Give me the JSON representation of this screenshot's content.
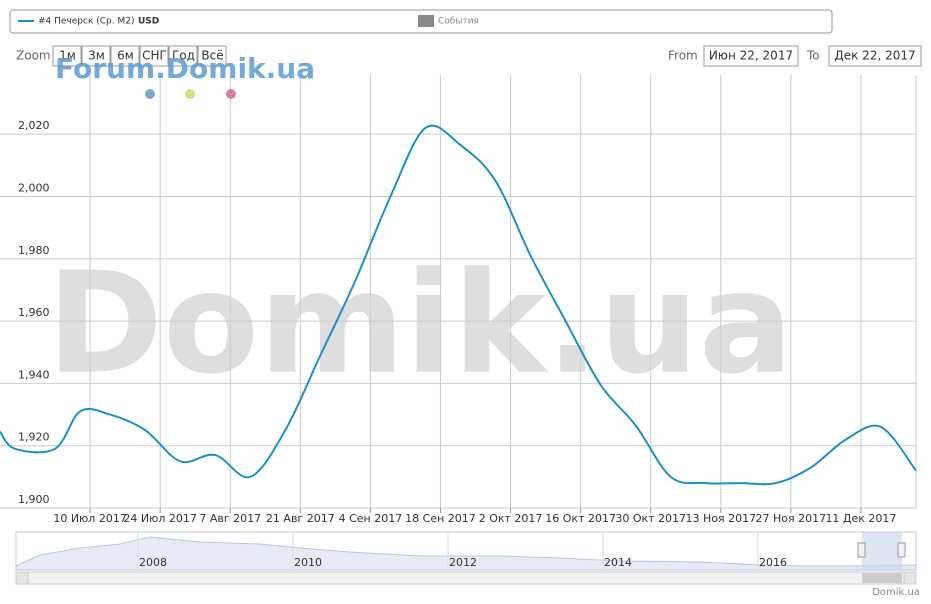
{
  "chart_data": {
    "type": "line",
    "legend": {
      "series_label": "#4 Печерск (Ср. М2)",
      "unit": "USD",
      "events": "События"
    },
    "watermark": "Domik.ua",
    "forum_watermark": "Forum.Domik.ua",
    "zoom": {
      "label": "Zoom",
      "buttons": [
        "1м",
        "3м",
        "6м",
        "СНГ",
        "Год",
        "Всё"
      ]
    },
    "range": {
      "from_label": "From",
      "from": "Июн 22, 2017",
      "to_label": "To",
      "to": "Дек 22, 2017"
    },
    "navigator_years": [
      "2008",
      "2010",
      "2012",
      "2014",
      "2016"
    ],
    "credit": "Domik.ua",
    "x": [
      "2017-06-22",
      "2017-06-25",
      "2017-07-03",
      "2017-07-08",
      "2017-07-14",
      "2017-07-21",
      "2017-07-28",
      "2017-08-04",
      "2017-08-11",
      "2017-08-18",
      "2017-08-25",
      "2017-09-01",
      "2017-09-08",
      "2017-09-15",
      "2017-09-22",
      "2017-09-29",
      "2017-10-06",
      "2017-10-13",
      "2017-10-20",
      "2017-10-27",
      "2017-11-03",
      "2017-11-10",
      "2017-11-17",
      "2017-11-24",
      "2017-12-01",
      "2017-12-08",
      "2017-12-15",
      "2017-12-22"
    ],
    "series": [
      {
        "name": "#4 Печерск (Ср. М2)",
        "color": "#1f8fc9",
        "values": [
          1924.5,
          1919,
          1919,
          1931,
          1930,
          1925,
          1915,
          1917,
          1910,
          1925,
          1949,
          1973,
          2000,
          2022,
          2016.5,
          2005,
          1981,
          1960,
          1939.5,
          1926.5,
          1910,
          1908,
          1908,
          1908,
          1913,
          1922,
          1926,
          1912
        ]
      }
    ],
    "xlim": [
      "2017-06-22",
      "2017-12-22"
    ],
    "xticks": [
      {
        "value": "2017-07-10",
        "label": "10 Июл 2017"
      },
      {
        "value": "2017-07-24",
        "label": "24 Июл 2017"
      },
      {
        "value": "2017-08-07",
        "label": "7 Авг 2017"
      },
      {
        "value": "2017-08-21",
        "label": "21 Авг 2017"
      },
      {
        "value": "2017-09-04",
        "label": "4 Сен 2017"
      },
      {
        "value": "2017-09-18",
        "label": "18 Сен 2017"
      },
      {
        "value": "2017-10-02",
        "label": "2 Окт 2017"
      },
      {
        "value": "2017-10-16",
        "label": "16 Окт 2017"
      },
      {
        "value": "2017-10-30",
        "label": "30 Окт 2017"
      },
      {
        "value": "2017-11-13",
        "label": "13 Ноя 2017"
      },
      {
        "value": "2017-11-27",
        "label": "27 Ноя 2017"
      },
      {
        "value": "2017-12-11",
        "label": "11 Дек 2017"
      }
    ],
    "ylim": [
      1900,
      2039
    ],
    "yticks": [
      {
        "value": 1900,
        "label": "1,900"
      },
      {
        "value": 1920,
        "label": "1,920"
      },
      {
        "value": 1940,
        "label": "1,940"
      },
      {
        "value": 1960,
        "label": "1,960"
      },
      {
        "value": 1980,
        "label": "1,980"
      },
      {
        "value": 2000,
        "label": "2,000"
      },
      {
        "value": 2020,
        "label": "2,020"
      }
    ],
    "grid": true
  }
}
